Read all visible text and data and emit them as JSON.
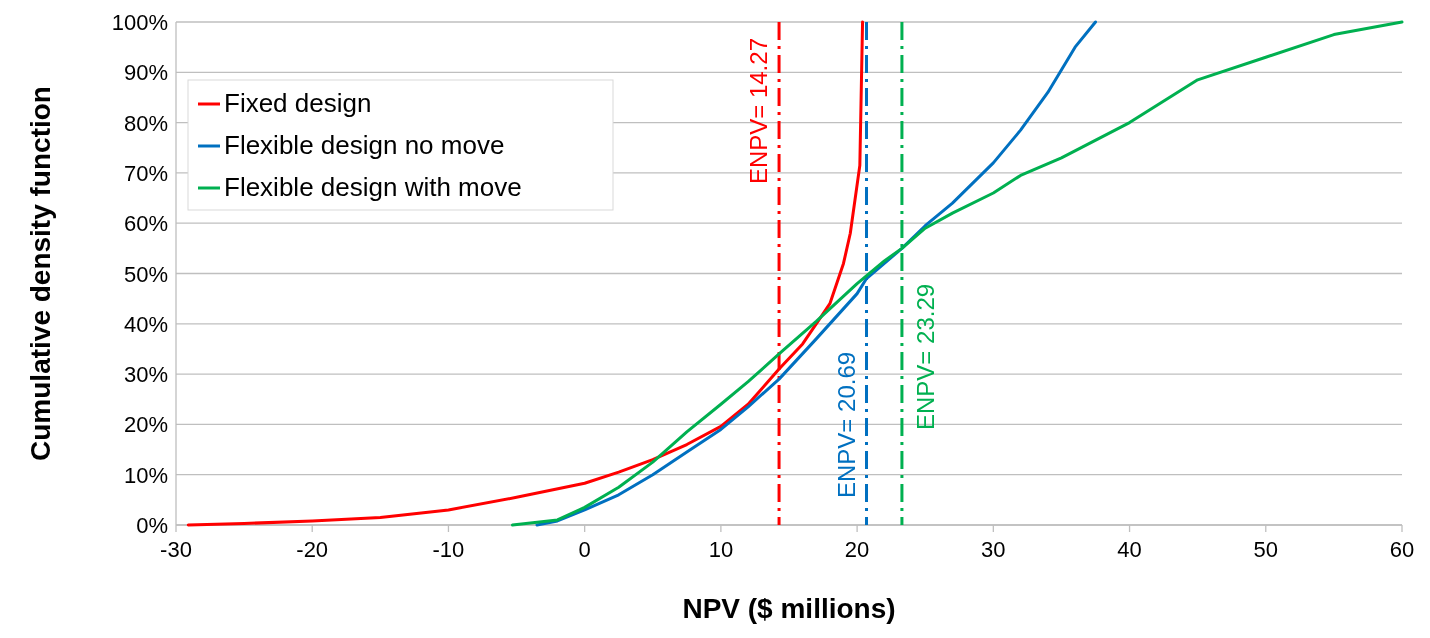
{
  "chart_data": {
    "type": "line",
    "xlabel": "NPV ($ millions)",
    "ylabel": "Cumulative density function",
    "xlim": [
      -30,
      60
    ],
    "xticks": [
      -30,
      -20,
      -10,
      0,
      10,
      20,
      30,
      40,
      50,
      60
    ],
    "ylim": [
      0,
      100
    ],
    "yticks": [
      {
        "value": 0,
        "label": "0%"
      },
      {
        "value": 10,
        "label": "10%"
      },
      {
        "value": 20,
        "label": "20%"
      },
      {
        "value": 30,
        "label": "30%"
      },
      {
        "value": 40,
        "label": "40%"
      },
      {
        "value": 50,
        "label": "50%"
      },
      {
        "value": 60,
        "label": "60%"
      },
      {
        "value": 70,
        "label": "70%"
      },
      {
        "value": 80,
        "label": "80%"
      },
      {
        "value": 90,
        "label": "90%"
      },
      {
        "value": 100,
        "label": "100%"
      }
    ],
    "grid": "y",
    "legend": "top left",
    "series": [
      {
        "name": "Fixed design",
        "color": "#ff0000",
        "x": [
          -29.1,
          -25,
          -20,
          -15,
          -10,
          -5,
          0,
          2.5,
          5,
          7.5,
          10,
          12,
          14.27,
          16,
          17,
          18,
          19,
          19.5,
          20.2,
          20.4
        ],
        "values": [
          0,
          0.3,
          0.8,
          1.5,
          3,
          5.5,
          8.3,
          10.5,
          13,
          16,
          19.6,
          24,
          31,
          36,
          40,
          44,
          52,
          58,
          71.5,
          100
        ]
      },
      {
        "name": "Flexible design no move",
        "color": "#0070c0",
        "x": [
          -3.5,
          -2,
          0,
          2.5,
          5,
          7.5,
          10,
          12,
          14.27,
          17,
          20,
          20.69,
          23.29,
          25,
          27,
          30,
          32,
          34,
          36,
          37.5
        ],
        "values": [
          0,
          0.8,
          3,
          6,
          10,
          14.5,
          19,
          23.5,
          29,
          37,
          46,
          49,
          55,
          59.5,
          64,
          72,
          78.5,
          86,
          95,
          100
        ]
      },
      {
        "name": "Flexible design with move",
        "color": "#00b050",
        "x": [
          -5.3,
          -2,
          0,
          2.5,
          5,
          7.5,
          10,
          12,
          14.27,
          17,
          20,
          22,
          23.29,
          25,
          27,
          30,
          32,
          35,
          40,
          45,
          50,
          55,
          60
        ],
        "values": [
          0,
          1,
          3.5,
          7.5,
          12.5,
          18.5,
          24,
          28.5,
          34,
          40.5,
          48,
          52.5,
          55,
          59,
          62,
          66,
          69.5,
          73,
          80,
          88.5,
          93,
          97.5,
          100
        ]
      }
    ],
    "ref_lines": [
      {
        "axis": "x",
        "value": 14.27,
        "label": "ENPV= 14.27",
        "color": "#ff0000",
        "line_style": "dashed"
      },
      {
        "axis": "x",
        "value": 20.69,
        "label": "ENPV= 20.69",
        "color": "#0070c0",
        "line_style": "dashed"
      },
      {
        "axis": "x",
        "value": 23.29,
        "label": "ENPV= 23.29",
        "color": "#00b050",
        "line_style": "dashed"
      }
    ]
  }
}
